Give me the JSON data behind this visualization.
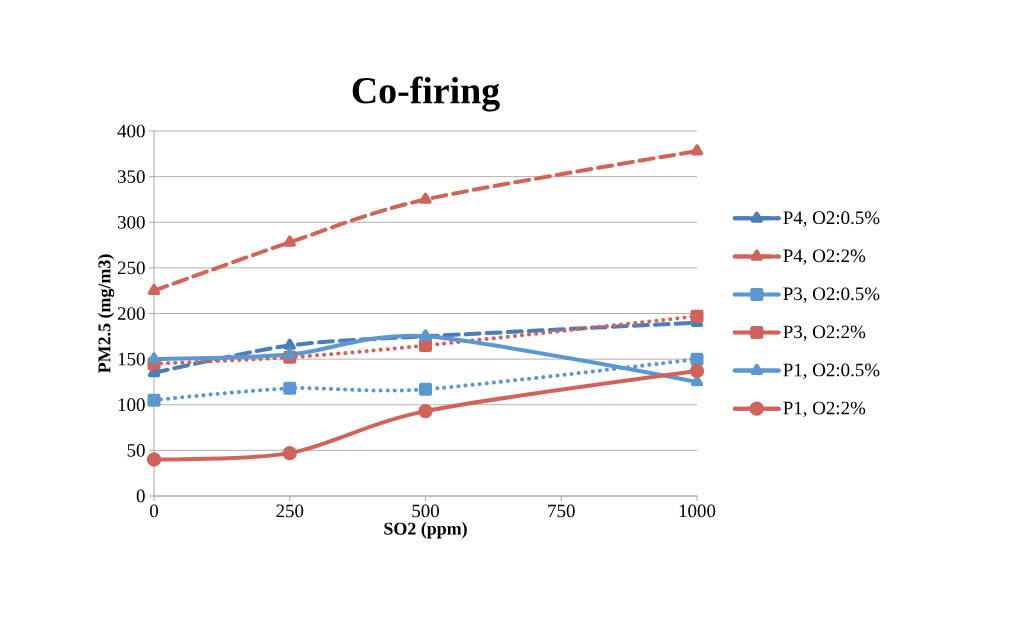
{
  "chart_data": {
    "type": "line",
    "title": "Co-firing",
    "xlabel": "SO2 (ppm)",
    "ylabel": "PM2.5 (mg/m3)",
    "x": [
      0,
      250,
      500,
      1000
    ],
    "xlim": [
      0,
      1000
    ],
    "xticks": [
      0,
      250,
      500,
      750,
      1000
    ],
    "ylim": [
      0,
      400
    ],
    "yticks": [
      0,
      50,
      100,
      150,
      200,
      250,
      300,
      350,
      400
    ],
    "grid": "y",
    "legend": "right",
    "series": [
      {
        "name": "P4, O2:0.5%",
        "color": "#4a7ebb",
        "marker": "triangle",
        "line_style": "dashed",
        "values": [
          135,
          165,
          175,
          190
        ]
      },
      {
        "name": "P4, O2:2%",
        "color": "#d0645a",
        "marker": "triangle",
        "line_style": "dashed",
        "values": [
          225,
          278,
          325,
          378
        ]
      },
      {
        "name": "P3, O2:0.5%",
        "color": "#5b97d0",
        "marker": "square",
        "line_style": "dotted",
        "values": [
          105,
          118,
          117,
          150
        ]
      },
      {
        "name": "P3, O2:2%",
        "color": "#d0645a",
        "marker": "square",
        "line_style": "dotted",
        "values": [
          145,
          152,
          165,
          197
        ]
      },
      {
        "name": "P1, O2:0.5%",
        "color": "#5b97d0",
        "marker": "triangle",
        "line_style": "solid",
        "values": [
          150,
          155,
          175,
          125
        ]
      },
      {
        "name": "P1, O2:2%",
        "color": "#d0645a",
        "marker": "circle",
        "line_style": "solid",
        "values": [
          40,
          47,
          93,
          137
        ]
      }
    ]
  }
}
